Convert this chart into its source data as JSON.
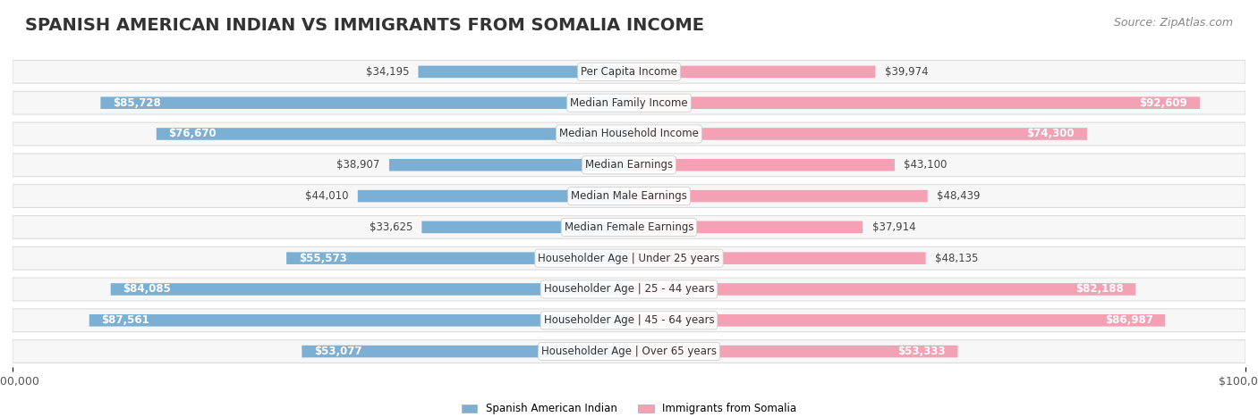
{
  "title": "SPANISH AMERICAN INDIAN VS IMMIGRANTS FROM SOMALIA INCOME",
  "source": "Source: ZipAtlas.com",
  "categories": [
    "Per Capita Income",
    "Median Family Income",
    "Median Household Income",
    "Median Earnings",
    "Median Male Earnings",
    "Median Female Earnings",
    "Householder Age | Under 25 years",
    "Householder Age | 25 - 44 years",
    "Householder Age | 45 - 64 years",
    "Householder Age | Over 65 years"
  ],
  "left_values": [
    34195,
    85728,
    76670,
    38907,
    44010,
    33625,
    55573,
    84085,
    87561,
    53077
  ],
  "right_values": [
    39974,
    92609,
    74300,
    43100,
    48439,
    37914,
    48135,
    82188,
    86987,
    53333
  ],
  "left_labels": [
    "$34,195",
    "$85,728",
    "$76,670",
    "$38,907",
    "$44,010",
    "$33,625",
    "$55,573",
    "$84,085",
    "$87,561",
    "$53,077"
  ],
  "right_labels": [
    "$39,974",
    "$92,609",
    "$74,300",
    "$43,100",
    "$48,439",
    "$37,914",
    "$48,135",
    "$82,188",
    "$86,987",
    "$53,333"
  ],
  "left_color": "#7bafd4",
  "right_color": "#f4a0b5",
  "left_color_dark": "#5b9ec9",
  "right_color_dark": "#f07090",
  "bar_bg_color": "#f0f0f0",
  "row_bg_color": "#f7f7f7",
  "row_border_color": "#dddddd",
  "left_legend": "Spanish American Indian",
  "right_legend": "Immigrants from Somalia",
  "max_value": 100000,
  "title_fontsize": 14,
  "label_fontsize": 8.5,
  "axis_label_fontsize": 9,
  "source_fontsize": 9,
  "background_color": "#ffffff"
}
